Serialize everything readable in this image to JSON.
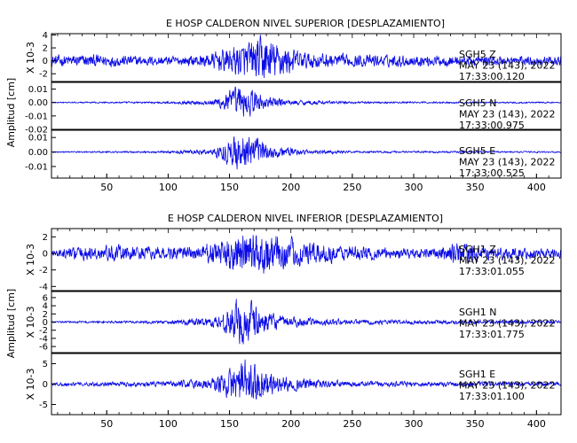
{
  "chart_data": [
    {
      "type": "line",
      "title": "E HOSP CALDERON NIVEL SUPERIOR [DESPLAZAMIENTO]",
      "ylabel": "Amplitud [cm]",
      "xlim": [
        5,
        420
      ],
      "xticks": [
        50,
        100,
        150,
        200,
        250,
        300,
        350,
        400
      ],
      "panels": [
        {
          "ylim": [
            -3.2,
            4.2
          ],
          "yticks": [
            4,
            2,
            0,
            -2
          ],
          "scale_label": "X 10-3",
          "annotation": [
            "SGH5   Z",
            "MAY 23 (143), 2022",
            "17:33:00.120"
          ],
          "series": [
            {
              "envelope": [
                [
                  5,
                  0.9
                ],
                [
                  40,
                  1.0
                ],
                [
                  80,
                  0.8
                ],
                [
                  110,
                  0.7
                ],
                [
                  135,
                  1.2
                ],
                [
                  150,
                  2.2
                ],
                [
                  160,
                  2.6
                ],
                [
                  170,
                  3.4
                ],
                [
                  178,
                  3.8
                ],
                [
                  190,
                  2.8
                ],
                [
                  210,
                  1.4
                ],
                [
                  240,
                  1.0
                ],
                [
                  300,
                  0.9
                ],
                [
                  350,
                  0.8
                ],
                [
                  420,
                  0.7
                ]
              ]
            }
          ]
        },
        {
          "ylim": [
            -0.02,
            0.015
          ],
          "yticks": [
            0.01,
            0.0,
            -0.01,
            -0.02
          ],
          "tick_labels": [
            "0.01",
            "0.00",
            "-0.01",
            "-0.02"
          ],
          "annotation": [
            "SGH5   N",
            "MAY 23 (143), 2022",
            "17:33:00.975"
          ],
          "series": [
            {
              "envelope": [
                [
                  5,
                  0.0004
                ],
                [
                  100,
                  0.0008
                ],
                [
                  135,
                  0.002
                ],
                [
                  150,
                  0.009
                ],
                [
                  158,
                  0.013
                ],
                [
                  165,
                  0.011
                ],
                [
                  180,
                  0.005
                ],
                [
                  200,
                  0.002
                ],
                [
                  250,
                  0.0008
                ],
                [
                  420,
                  0.0005
                ]
              ]
            }
          ]
        },
        {
          "ylim": [
            -0.018,
            0.015
          ],
          "yticks": [
            0.01,
            0.0,
            -0.01
          ],
          "tick_labels": [
            "0.01",
            "0.00",
            "-0.01"
          ],
          "annotation": [
            "SGH5   E",
            "MAY 23 (143), 2022",
            "17:33:00.525"
          ],
          "series": [
            {
              "envelope": [
                [
                  5,
                  0.0004
                ],
                [
                  100,
                  0.0008
                ],
                [
                  135,
                  0.002
                ],
                [
                  150,
                  0.009
                ],
                [
                  160,
                  0.013
                ],
                [
                  170,
                  0.011
                ],
                [
                  185,
                  0.005
                ],
                [
                  205,
                  0.002
                ],
                [
                  250,
                  0.0008
                ],
                [
                  420,
                  0.0005
                ]
              ]
            }
          ]
        }
      ]
    },
    {
      "type": "line",
      "title": "E HOSP CALDERON NIVEL INFERIOR [DESPLAZAMIENTO]",
      "ylabel": "Amplitud [cm]",
      "xlim": [
        5,
        420
      ],
      "xticks": [
        50,
        100,
        150,
        200,
        250,
        300,
        350,
        400
      ],
      "panels": [
        {
          "ylim": [
            -4.5,
            3.0
          ],
          "yticks": [
            2,
            0,
            -2,
            -4
          ],
          "scale_label": "X 10-3",
          "annotation": [
            "SGH1   Z",
            "MAY 23 (143), 2022",
            "17:33:01.055"
          ],
          "series": [
            {
              "envelope": [
                [
                  5,
                  0.5
                ],
                [
                  30,
                  0.9
                ],
                [
                  60,
                  1.0
                ],
                [
                  90,
                  0.8
                ],
                [
                  120,
                  0.9
                ],
                [
                  140,
                  1.6
                ],
                [
                  160,
                  2.6
                ],
                [
                  175,
                  2.8
                ],
                [
                  190,
                  2.2
                ],
                [
                  210,
                  1.5
                ],
                [
                  240,
                  1.0
                ],
                [
                  290,
                  0.6
                ],
                [
                  320,
                  0.8
                ],
                [
                  335,
                  1.4
                ],
                [
                  360,
                  0.8
                ],
                [
                  420,
                  0.6
                ]
              ]
            }
          ]
        },
        {
          "ylim": [
            -7.5,
            7.5
          ],
          "yticks": [
            6,
            4,
            2,
            0,
            -2,
            -4,
            -6
          ],
          "scale_label": "X 10-3",
          "annotation": [
            "SGH1   N",
            "MAY 23 (143), 2022",
            "17:33:01.775"
          ],
          "series": [
            {
              "envelope": [
                [
                  5,
                  0.2
                ],
                [
                  100,
                  0.4
                ],
                [
                  135,
                  1.2
                ],
                [
                  150,
                  3.5
                ],
                [
                  160,
                  6.5
                ],
                [
                  168,
                  5.0
                ],
                [
                  180,
                  2.5
                ],
                [
                  200,
                  1.2
                ],
                [
                  250,
                  0.6
                ],
                [
                  420,
                  0.4
                ]
              ]
            }
          ]
        },
        {
          "ylim": [
            -7.5,
            7.5
          ],
          "yticks": [
            5,
            0,
            -5
          ],
          "scale_label": "X 10-3",
          "annotation": [
            "SGH1   E",
            "MAY 23 (143), 2022",
            "17:33:01.100"
          ],
          "series": [
            {
              "envelope": [
                [
                  5,
                  0.4
                ],
                [
                  100,
                  0.7
                ],
                [
                  135,
                  1.5
                ],
                [
                  150,
                  3.5
                ],
                [
                  160,
                  6.0
                ],
                [
                  170,
                  5.0
                ],
                [
                  185,
                  2.5
                ],
                [
                  205,
                  1.5
                ],
                [
                  250,
                  0.7
                ],
                [
                  420,
                  0.5
                ]
              ]
            }
          ]
        }
      ]
    }
  ],
  "colors": {
    "trace": "#0a0ae6",
    "axes": "#000000"
  }
}
